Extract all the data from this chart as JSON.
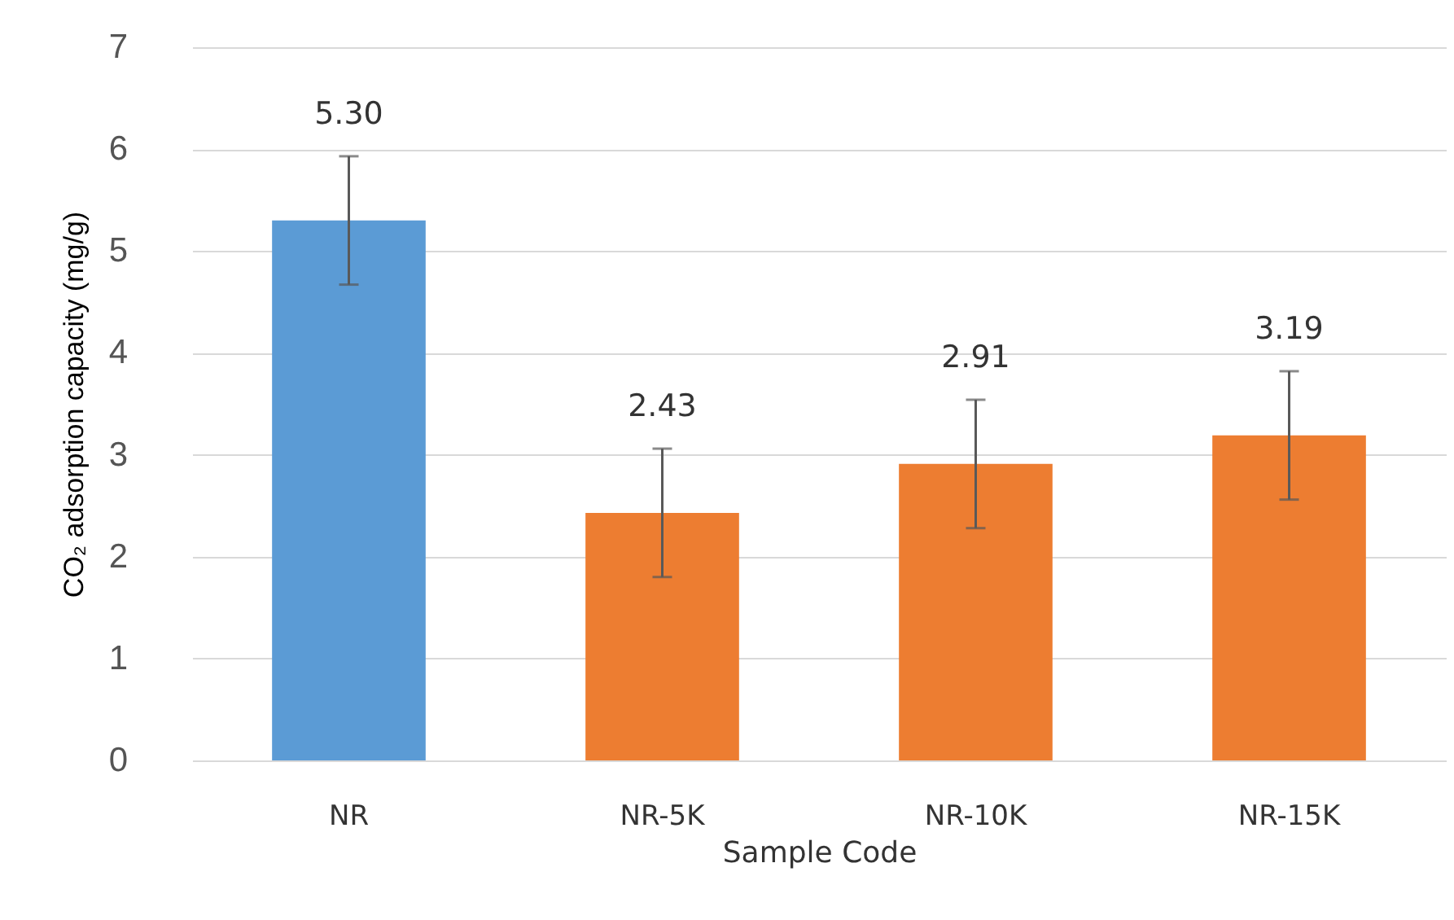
{
  "chart_data": {
    "type": "bar",
    "xlabel": "Sample Code",
    "ylabel": "CO₂ adsorption capacity  (mg/g)",
    "categories": [
      "NR",
      "NR-5K",
      "NR-10K",
      "NR-15K"
    ],
    "values": [
      5.3,
      2.43,
      2.91,
      3.19
    ],
    "colors": [
      "#5b9bd5",
      "#ed7d31",
      "#ed7d31",
      "#ed7d31"
    ],
    "errors": [
      0.63,
      0.63,
      0.63,
      0.63
    ],
    "value_labels": [
      "5.30",
      "2.43",
      "2.91",
      "3.19"
    ],
    "ylim": [
      0,
      7
    ],
    "yticks": [
      0,
      1,
      2,
      3,
      4,
      5,
      6,
      7
    ],
    "grid": "y"
  }
}
